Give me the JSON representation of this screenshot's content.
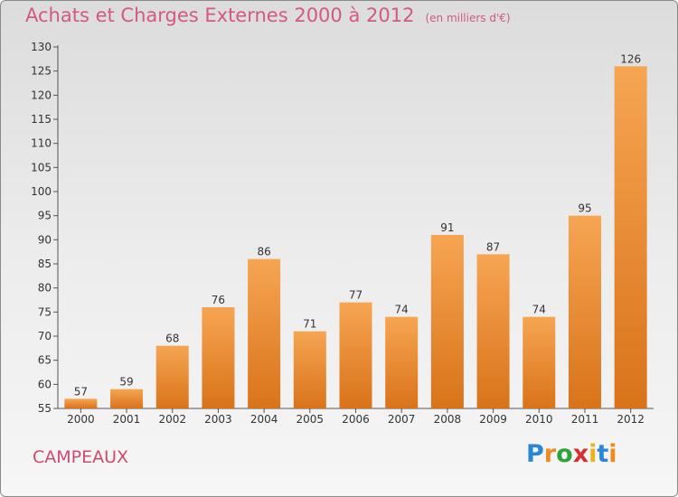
{
  "title": "Achats et Charges Externes 2000 à 2012",
  "unit": "(en milliers d'€)",
  "town": "CAMPEAUX",
  "brand": {
    "letters": [
      "P",
      "r",
      "o",
      "x",
      "i",
      "t",
      "i"
    ],
    "colors": [
      "#2a86d6",
      "#f08a1c",
      "#2fa33a",
      "#d62f2f",
      "#e8b41a",
      "#2a86d6",
      "#f08a1c"
    ]
  },
  "colors": {
    "bar_light": "#f6a552",
    "bar_dark": "#d9731a",
    "title": "#d25a7e"
  },
  "chart_data": {
    "type": "bar",
    "categories": [
      "2000",
      "2001",
      "2002",
      "2003",
      "2004",
      "2005",
      "2006",
      "2007",
      "2008",
      "2009",
      "2010",
      "2011",
      "2012"
    ],
    "values": [
      57,
      59,
      68,
      76,
      86,
      71,
      77,
      74,
      91,
      87,
      74,
      95,
      126
    ],
    "ylim": [
      55,
      130
    ],
    "yticks": [
      55,
      60,
      65,
      70,
      75,
      80,
      85,
      90,
      95,
      100,
      105,
      110,
      115,
      120,
      125,
      130
    ],
    "grid": false,
    "data_labels": true
  }
}
